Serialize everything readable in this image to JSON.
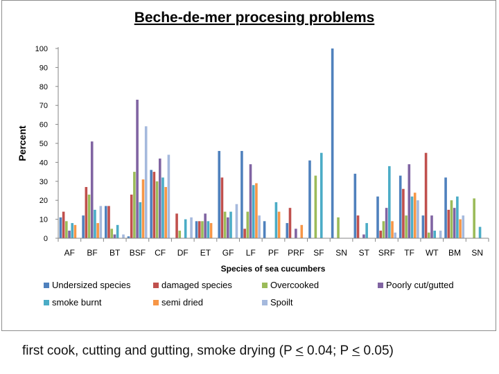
{
  "chart_data": {
    "type": "bar",
    "title": "Beche-de-mer procesing problems",
    "xlabel": "Species of sea cucumbers",
    "ylabel": "Percent",
    "ylim": [
      0,
      100
    ],
    "yticks": [
      0,
      10,
      20,
      30,
      40,
      50,
      60,
      70,
      80,
      90,
      100
    ],
    "grid": false,
    "legend_position": "bottom",
    "categories": [
      "AF",
      "BF",
      "BT",
      "BSF",
      "CF",
      "DF",
      "ET",
      "GF",
      "LF",
      "PF",
      "PRF",
      "SF",
      "SN",
      "ST",
      "SRF",
      "TF",
      "WT",
      "BM",
      "SN"
    ],
    "series": [
      {
        "name": "Undersized species",
        "color": "#4f81bd",
        "values": [
          11,
          12,
          17,
          1,
          36,
          0,
          9,
          46,
          46,
          9,
          8,
          41,
          100,
          34,
          22,
          33,
          12,
          32,
          0
        ]
      },
      {
        "name": "damaged species",
        "color": "#c0504d",
        "values": [
          14,
          27,
          17,
          23,
          35,
          13,
          9,
          32,
          5,
          0,
          16,
          0,
          0,
          12,
          4,
          26,
          45,
          15,
          0
        ]
      },
      {
        "name": "Overcooked",
        "color": "#9bbb59",
        "values": [
          9,
          23,
          5,
          35,
          30,
          4,
          9,
          14,
          14,
          0,
          0,
          33,
          11,
          0,
          9,
          12,
          3,
          20,
          21
        ]
      },
      {
        "name": "Poorly cut/gutted",
        "color": "#8064a2",
        "values": [
          4,
          51,
          2,
          73,
          42,
          0,
          13,
          11,
          39,
          0,
          5,
          0,
          0,
          2,
          16,
          39,
          12,
          16,
          0
        ]
      },
      {
        "name": "smoke burnt",
        "color": "#4bacc6",
        "values": [
          8,
          15,
          7,
          19,
          32,
          10,
          9,
          14,
          28,
          19,
          0,
          45,
          0,
          8,
          38,
          22,
          4,
          22,
          6
        ]
      },
      {
        "name": "semi dried",
        "color": "#f79646",
        "values": [
          7,
          8,
          0,
          31,
          27,
          0,
          8,
          0,
          29,
          14,
          7,
          0,
          0,
          0,
          9,
          24,
          0,
          10,
          0
        ]
      },
      {
        "name": "Spoilt",
        "color": "#a5b9dd",
        "values": [
          0,
          17,
          2,
          59,
          44,
          11,
          0,
          18,
          12,
          0,
          0,
          0,
          0,
          0,
          3,
          20,
          4,
          12,
          0
        ]
      }
    ]
  },
  "caption": {
    "part1": "first cook, cutting and gutting, smoke drying (P ",
    "lt1": "<",
    "part2": " 0.04; P ",
    "lt2": "<",
    "part3": " 0.05)"
  }
}
